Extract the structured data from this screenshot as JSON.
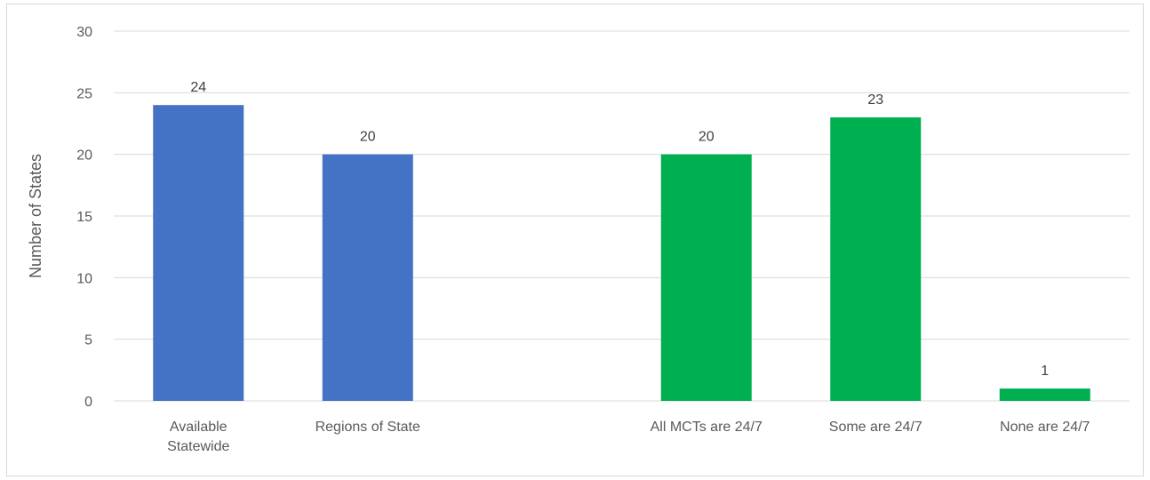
{
  "chart_data": {
    "type": "bar",
    "title": "",
    "xlabel": "",
    "ylabel": "Number of States",
    "ylim": [
      0,
      30
    ],
    "yticks": [
      0,
      5,
      10,
      15,
      20,
      25,
      30
    ],
    "grid": true,
    "legend": "none",
    "categories": [
      [
        "Available",
        "Statewide"
      ],
      [
        "Regions of State"
      ],
      [
        ""
      ],
      [
        "All MCTs are 24/7"
      ],
      [
        "Some are 24/7"
      ],
      [
        "None are 24/7"
      ]
    ],
    "values": [
      24,
      20,
      null,
      20,
      23,
      1
    ],
    "colors": [
      "#4472c4",
      "#4472c4",
      null,
      "#00b050",
      "#00b050",
      "#00b050"
    ]
  }
}
